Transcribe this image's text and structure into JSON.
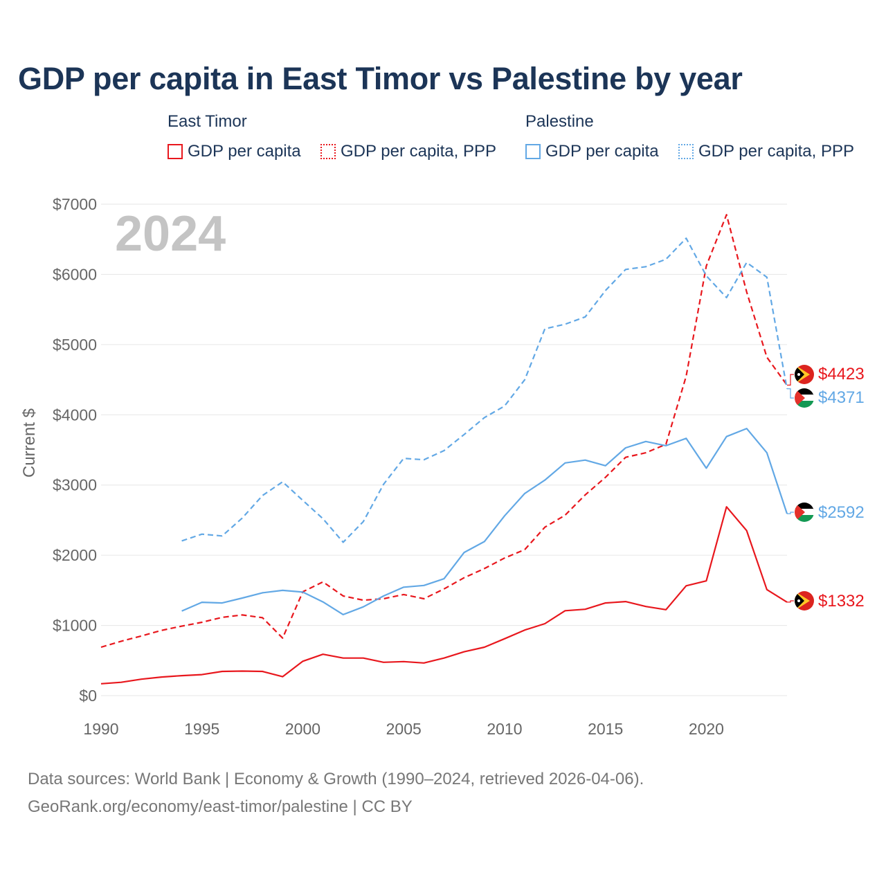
{
  "title": "GDP per capita in East Timor vs Palestine by year",
  "legend": {
    "groups": [
      {
        "name": "East Timor",
        "items": [
          "GDP per capita",
          "GDP per capita, PPP"
        ]
      },
      {
        "name": "Palestine",
        "items": [
          "GDP per capita",
          "GDP per capita, PPP"
        ]
      }
    ]
  },
  "colors": {
    "east_timor": "#e8171d",
    "palestine": "#62a8e5",
    "title": "#1c3557"
  },
  "year_watermark": "2024",
  "footer": {
    "line1": "Data sources: World Bank | Economy & Growth (1990–2024, retrieved 2026-04-06).",
    "line2": "GeoRank.org/economy/east-timor/palestine | CC BY"
  },
  "chart_data": {
    "type": "line",
    "title": "GDP per capita in East Timor vs Palestine by year",
    "xlabel": "",
    "ylabel": "Current $",
    "xlim": [
      1990,
      2024
    ],
    "ylim": [
      0,
      7000
    ],
    "x_ticks": [
      1990,
      1995,
      2000,
      2005,
      2010,
      2015,
      2020
    ],
    "y_ticks": [
      0,
      1000,
      2000,
      3000,
      4000,
      5000,
      6000,
      7000
    ],
    "y_tick_labels": [
      "$0",
      "$1000",
      "$2000",
      "$3000",
      "$4000",
      "$5000",
      "$6000",
      "$7000"
    ],
    "series": [
      {
        "name": "East Timor GDP per capita",
        "country": "East Timor",
        "style": "solid",
        "color": "#e8171d",
        "end_label": "$1332",
        "x": [
          1990,
          1991,
          1992,
          1993,
          1994,
          1995,
          1996,
          1997,
          1998,
          1999,
          2000,
          2001,
          2002,
          2003,
          2004,
          2005,
          2006,
          2007,
          2008,
          2009,
          2010,
          2011,
          2012,
          2013,
          2014,
          2015,
          2016,
          2017,
          2018,
          2019,
          2020,
          2021,
          2022,
          2023,
          2024
        ],
        "values": [
          170,
          190,
          235,
          265,
          285,
          300,
          345,
          350,
          345,
          270,
          490,
          590,
          535,
          535,
          475,
          485,
          465,
          535,
          625,
          690,
          810,
          935,
          1025,
          1210,
          1230,
          1320,
          1340,
          1270,
          1225,
          1565,
          1635,
          2690,
          2350,
          1510,
          1332
        ]
      },
      {
        "name": "East Timor GDP per capita, PPP",
        "country": "East Timor",
        "style": "dashed",
        "color": "#e8171d",
        "end_label": "$4423",
        "x": [
          1990,
          1991,
          1992,
          1993,
          1994,
          1995,
          1996,
          1997,
          1998,
          1999,
          2000,
          2001,
          2002,
          2003,
          2004,
          2005,
          2006,
          2007,
          2008,
          2009,
          2010,
          2011,
          2012,
          2013,
          2014,
          2015,
          2016,
          2017,
          2018,
          2019,
          2020,
          2021,
          2022,
          2023,
          2024
        ],
        "values": [
          690,
          775,
          850,
          930,
          990,
          1045,
          1115,
          1150,
          1110,
          820,
          1480,
          1620,
          1420,
          1360,
          1380,
          1440,
          1380,
          1520,
          1680,
          1810,
          1960,
          2080,
          2400,
          2570,
          2860,
          3110,
          3395,
          3460,
          3580,
          4550,
          6120,
          6850,
          5750,
          4820,
          4423
        ]
      },
      {
        "name": "Palestine GDP per capita",
        "country": "Palestine",
        "style": "solid",
        "color": "#62a8e5",
        "end_label": "$2592",
        "x": [
          1994,
          1995,
          1996,
          1997,
          1998,
          1999,
          2000,
          2001,
          2002,
          2003,
          2004,
          2005,
          2006,
          2007,
          2008,
          2009,
          2010,
          2011,
          2012,
          2013,
          2014,
          2015,
          2016,
          2017,
          2018,
          2019,
          2020,
          2021,
          2022,
          2023,
          2024
        ],
        "values": [
          1205,
          1330,
          1320,
          1390,
          1465,
          1500,
          1475,
          1335,
          1155,
          1265,
          1420,
          1545,
          1570,
          1665,
          2040,
          2195,
          2560,
          2880,
          3070,
          3315,
          3355,
          3275,
          3530,
          3620,
          3560,
          3665,
          3240,
          3690,
          3805,
          3460,
          2592
        ]
      },
      {
        "name": "Palestine GDP per capita, PPP",
        "country": "Palestine",
        "style": "dashed",
        "color": "#62a8e5",
        "end_label": "$4371",
        "x": [
          1994,
          1995,
          1996,
          1997,
          1998,
          1999,
          2000,
          2001,
          2002,
          2003,
          2004,
          2005,
          2006,
          2007,
          2008,
          2009,
          2010,
          2011,
          2012,
          2013,
          2014,
          2015,
          2016,
          2017,
          2018,
          2019,
          2020,
          2021,
          2022,
          2023,
          2024
        ],
        "values": [
          2205,
          2300,
          2275,
          2530,
          2850,
          3045,
          2780,
          2520,
          2185,
          2480,
          3010,
          3380,
          3360,
          3490,
          3720,
          3960,
          4125,
          4500,
          5225,
          5290,
          5395,
          5770,
          6070,
          6110,
          6215,
          6515,
          5980,
          5670,
          6170,
          5960,
          4371
        ]
      }
    ]
  }
}
